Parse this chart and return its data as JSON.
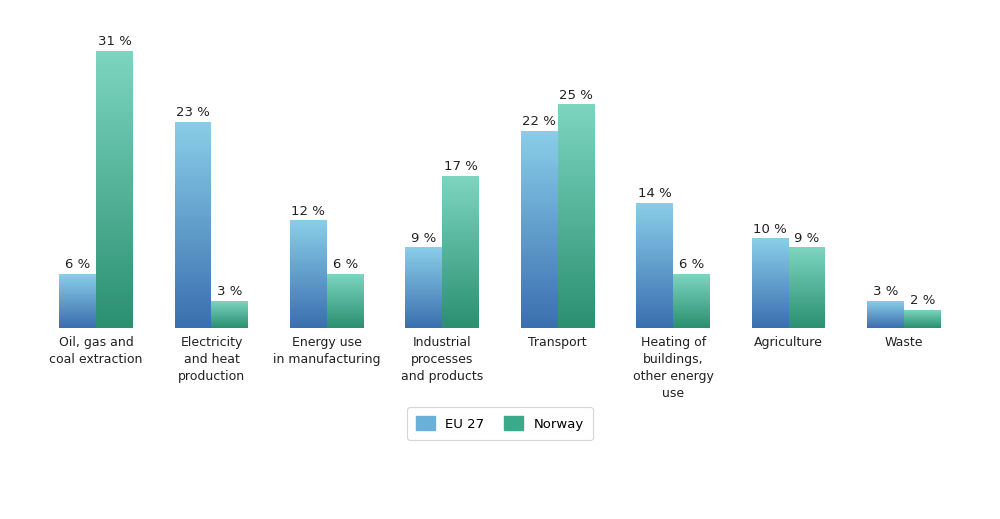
{
  "categories": [
    "Oil, gas and\ncoal extraction",
    "Electricity\nand heat\nproduction",
    "Energy use\nin manufacturing",
    "Industrial\nprocesses\nand products",
    "Transport",
    "Heating of\nbuildings,\nother energy\nuse",
    "Agriculture",
    "Waste"
  ],
  "eu27_values": [
    6,
    23,
    12,
    9,
    22,
    14,
    10,
    3
  ],
  "norway_values": [
    31,
    3,
    6,
    17,
    25,
    6,
    9,
    2
  ],
  "eu27_color_top": "#89cde8",
  "eu27_color_bottom": "#3a6faf",
  "norway_color_top": "#7dd4c0",
  "norway_color_bottom": "#2a9070",
  "eu27_legend_color": "#6ab0d8",
  "norway_legend_color": "#3aab8a",
  "bar_width": 0.32,
  "ylim": [
    0,
    35
  ],
  "legend_labels": [
    "EU 27",
    "Norway"
  ],
  "annotation_fontsize": 9.5,
  "tick_fontsize": 9.0,
  "background_color": "#ffffff",
  "grid_color": "#d0d0d0",
  "n_gradient": 100
}
